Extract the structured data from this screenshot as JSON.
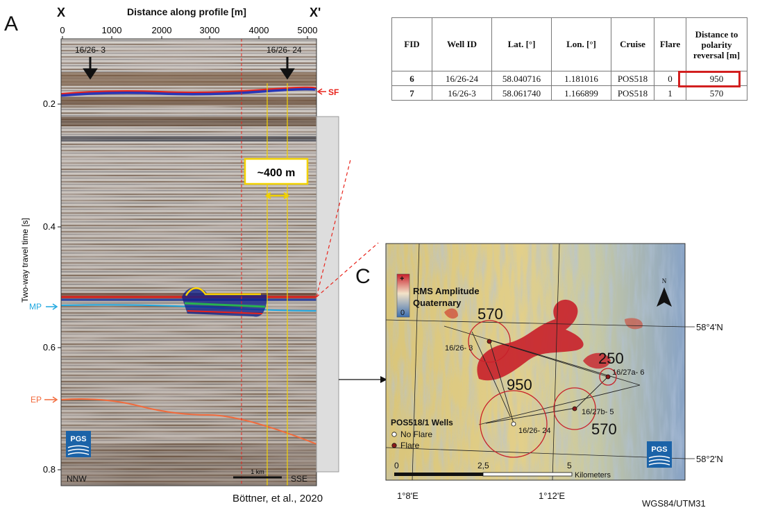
{
  "figure": {
    "panel_a_label": "A",
    "panel_c_label": "C",
    "citation": "Böttner, et al., 2020"
  },
  "seismic": {
    "profile_start": "X",
    "profile_end": "X'",
    "distance_axis_title": "Distance along profile [m]",
    "distance_ticks": [
      "0",
      "1000",
      "2000",
      "3000",
      "4000",
      "5000"
    ],
    "twt_axis_title": "Two-way travel time [s]",
    "twt_ticks": [
      "0.2",
      "0.4",
      "0.6",
      "0.8"
    ],
    "well_left": "16/26- 3",
    "well_right": "16/26- 24",
    "horizon_sf": "SF",
    "horizon_mp": "MP",
    "horizon_ep": "EP",
    "width_callout": "~400 m",
    "scale_bar": "1 km",
    "orientation_left": "NNW",
    "orientation_right": "SSE",
    "logo": "PGS",
    "colors": {
      "sf": "#e8231b",
      "mp": "#1ea7e0",
      "ep": "#f26a3b",
      "callout": "#f2d200"
    }
  },
  "well_table": {
    "headers": [
      "FID",
      "Well ID",
      "Lat. [°]",
      "Lon. [°]",
      "Cruise",
      "Flare",
      "Distance to polarity reversal [m]"
    ],
    "rows": [
      {
        "fid": "6",
        "well_id": "16/26-24",
        "lat": "58.040716",
        "lon": "1.181016",
        "cruise": "POS518",
        "flare": "0",
        "distance": "950"
      },
      {
        "fid": "7",
        "well_id": "16/26-3",
        "lat": "58.061740",
        "lon": "1.166899",
        "cruise": "POS518",
        "flare": "1",
        "distance": "570"
      }
    ],
    "highlight_color": "#d21f1f"
  },
  "map": {
    "legend_title_1": "RMS Amplitude",
    "legend_title_2": "Quaternary",
    "legend_max": "+",
    "legend_min": "0",
    "wells_legend_title": "POS518/1 Wells",
    "no_flare_label": "No Flare",
    "flare_label": "Flare",
    "north": "N",
    "lat_58_4": "58°4'N",
    "lat_58_2": "58°2'N",
    "lon_1_8": "1°8'E",
    "lon_1_12": "1°12'E",
    "scale_0": "0",
    "scale_2_5": "2,5",
    "scale_5": "5",
    "scale_units": "Kilometers",
    "datum": "WGS84/UTM31",
    "logo": "PGS",
    "wells": [
      {
        "name": "16/26- 3",
        "radius_label": "570",
        "flare": true
      },
      {
        "name": "16/26- 24",
        "radius_label": "950",
        "flare": false
      },
      {
        "name": "16/27a- 6",
        "radius_label": "250",
        "flare": true
      },
      {
        "name": "16/27b- 5",
        "radius_label": "570",
        "flare": true
      }
    ]
  }
}
